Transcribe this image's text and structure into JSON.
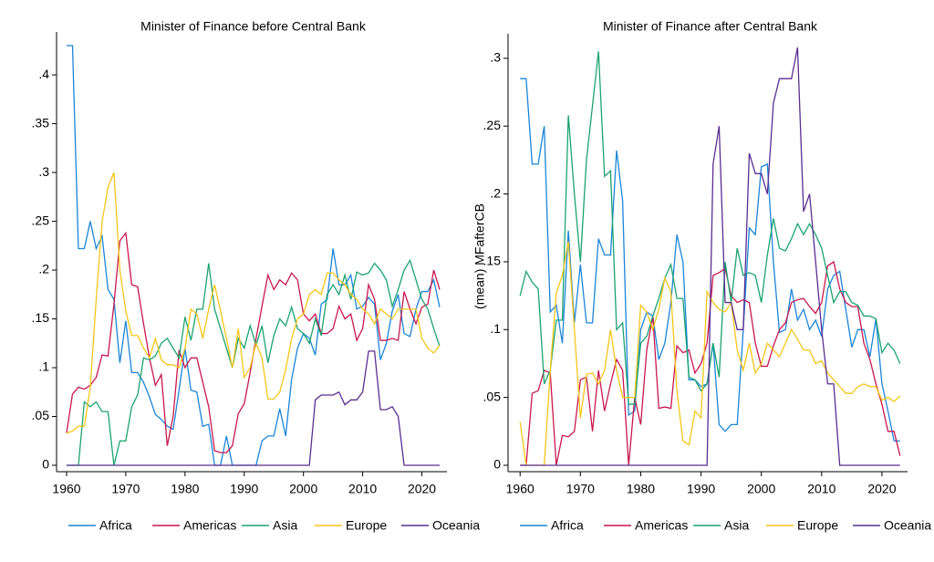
{
  "chart_data": [
    {
      "type": "line",
      "title": "Minister of Finance before Central Bank",
      "legend": "bottom",
      "xlim": [
        1958,
        2025
      ],
      "xticks": [
        1960,
        1970,
        1980,
        1990,
        2000,
        2010,
        2020
      ],
      "ylim": [
        0,
        0.43
      ],
      "yticks": [
        0,
        {
          "value": 0.05,
          "label": ".05"
        },
        {
          "value": 0.1,
          "label": ".1"
        },
        {
          "value": 0.15,
          "label": ".15"
        },
        {
          "value": 0.2,
          "label": ".2"
        },
        {
          "value": 0.25,
          "label": ".25"
        },
        {
          "value": 0.3,
          "label": ".3"
        },
        {
          "value": 0.35,
          "label": ".35"
        },
        {
          "value": 0.4,
          "label": ".4"
        }
      ],
      "x": [
        1960,
        1961,
        1962,
        1963,
        1964,
        1965,
        1966,
        1967,
        1968,
        1969,
        1970,
        1971,
        1972,
        1973,
        1974,
        1975,
        1976,
        1977,
        1978,
        1979,
        1980,
        1981,
        1982,
        1983,
        1984,
        1985,
        1986,
        1987,
        1988,
        1989,
        1990,
        1991,
        1992,
        1993,
        1994,
        1995,
        1996,
        1997,
        1998,
        1999,
        2000,
        2001,
        2002,
        2003,
        2004,
        2005,
        2006,
        2007,
        2008,
        2009,
        2010,
        2011,
        2012,
        2013,
        2014,
        2015,
        2016,
        2017,
        2018,
        2019,
        2020,
        2021,
        2022,
        2023
      ],
      "series": [
        {
          "name": "Africa",
          "color": "#1a85d8",
          "values": [
            0.43,
            0.43,
            0.222,
            0.222,
            0.25,
            0.222,
            0.235,
            0.18,
            0.17,
            0.105,
            0.148,
            0.095,
            0.095,
            0.085,
            0.07,
            0.052,
            0.047,
            0.04,
            0.037,
            0.077,
            0.12,
            0.077,
            0.075,
            0.04,
            0.042,
            0,
            0,
            0.03,
            0,
            0,
            0,
            0,
            0,
            0.025,
            0.03,
            0.03,
            0.058,
            0.03,
            0.088,
            0.12,
            0.135,
            0.13,
            0.113,
            0.165,
            0.17,
            0.222,
            0.185,
            0.185,
            0.195,
            0.16,
            0.163,
            0.172,
            0.165,
            0.108,
            0.125,
            0.158,
            0.175,
            0.135,
            0.132,
            0.16,
            0.178,
            0.178,
            0.19,
            0.162
          ]
        },
        {
          "name": "Americas",
          "color": "#c8174d",
          "values": [
            0.033,
            0.073,
            0.08,
            0.078,
            0.082,
            0.09,
            0.113,
            0.112,
            0.165,
            0.23,
            0.238,
            0.185,
            0.183,
            0.145,
            0.11,
            0.082,
            0.093,
            0.02,
            0.05,
            0.118,
            0.1,
            0.11,
            0.11,
            0.085,
            0.06,
            0.015,
            0.013,
            0.013,
            0.02,
            0.053,
            0.063,
            0.095,
            0.13,
            0.163,
            0.195,
            0.18,
            0.19,
            0.185,
            0.197,
            0.19,
            0.155,
            0.148,
            0.155,
            0.135,
            0.135,
            0.14,
            0.163,
            0.15,
            0.155,
            0.128,
            0.14,
            0.185,
            0.17,
            0.128,
            0.128,
            0.13,
            0.128,
            0.178,
            0.16,
            0.145,
            0.162,
            0.165,
            0.2,
            0.18
          ]
        },
        {
          "name": "Asia",
          "color": "#1aa36f",
          "values": [
            0,
            0,
            0,
            0.065,
            0.06,
            0.065,
            0.055,
            0.055,
            0,
            0.025,
            0.025,
            0.06,
            0.072,
            0.11,
            0.108,
            0.112,
            0.125,
            0.13,
            0.12,
            0.11,
            0.152,
            0.128,
            0.16,
            0.16,
            0.207,
            0.16,
            0.14,
            0.12,
            0.1,
            0.13,
            0.12,
            0.143,
            0.123,
            0.143,
            0.105,
            0.133,
            0.15,
            0.143,
            0.162,
            0.14,
            0.135,
            0.125,
            0.15,
            0.133,
            0.175,
            0.185,
            0.175,
            0.195,
            0.17,
            0.198,
            0.195,
            0.197,
            0.207,
            0.2,
            0.19,
            0.163,
            0.18,
            0.2,
            0.21,
            0.19,
            0.17,
            0.16,
            0.14,
            0.122
          ]
        },
        {
          "name": "Europe",
          "color": "#f5c518",
          "values": [
            0.033,
            0.035,
            0.04,
            0.04,
            0.08,
            0.17,
            0.25,
            0.285,
            0.3,
            0.2,
            0.158,
            0.133,
            0.133,
            0.12,
            0.11,
            0.13,
            0.108,
            0.103,
            0.103,
            0.1,
            0.12,
            0.16,
            0.155,
            0.13,
            0.16,
            0.185,
            0.158,
            0.13,
            0.1,
            0.14,
            0.09,
            0.1,
            0.125,
            0.11,
            0.068,
            0.068,
            0.075,
            0.098,
            0.13,
            0.15,
            0.155,
            0.175,
            0.18,
            0.175,
            0.197,
            0.197,
            0.19,
            0.185,
            0.175,
            0.17,
            0.16,
            0.155,
            0.145,
            0.16,
            0.155,
            0.15,
            0.16,
            0.16,
            0.16,
            0.16,
            0.13,
            0.12,
            0.115,
            0.123
          ]
        },
        {
          "name": "Oceania",
          "color": "#5a2d91",
          "values": [
            0,
            0,
            0,
            0,
            0,
            0,
            0,
            0,
            0,
            0,
            0,
            0,
            0,
            0,
            0,
            0,
            0,
            0,
            0,
            0,
            0,
            0,
            0,
            0,
            0,
            0,
            0,
            0,
            0,
            0,
            0,
            0,
            0,
            0,
            0,
            0,
            0,
            0,
            0,
            0,
            0,
            0,
            0.067,
            0.072,
            0.072,
            0.072,
            0.075,
            0.062,
            0.067,
            0.067,
            0.075,
            0.117,
            0.117,
            0.057,
            0.057,
            0.06,
            0.05,
            0,
            0,
            0,
            0,
            0,
            0,
            0
          ]
        }
      ]
    },
    {
      "type": "line",
      "title": "Minister of Finance after Central Bank",
      "ylabel": "(mean) MFafterCB",
      "legend": "bottom",
      "xlim": [
        1958,
        2025
      ],
      "xticks": [
        1960,
        1970,
        1980,
        1990,
        2000,
        2010,
        2020
      ],
      "ylim": [
        0,
        0.308
      ],
      "yticks": [
        0,
        {
          "value": 0.05,
          "label": ".05"
        },
        {
          "value": 0.1,
          "label": ".1"
        },
        {
          "value": 0.15,
          "label": ".15"
        },
        {
          "value": 0.2,
          "label": ".2"
        },
        {
          "value": 0.25,
          "label": ".25"
        },
        {
          "value": 0.3,
          "label": ".3"
        }
      ],
      "x": [
        1960,
        1961,
        1962,
        1963,
        1964,
        1965,
        1966,
        1967,
        1968,
        1969,
        1970,
        1971,
        1972,
        1973,
        1974,
        1975,
        1976,
        1977,
        1978,
        1979,
        1980,
        1981,
        1982,
        1983,
        1984,
        1985,
        1986,
        1987,
        1988,
        1989,
        1990,
        1991,
        1992,
        1993,
        1994,
        1995,
        1996,
        1997,
        1998,
        1999,
        2000,
        2001,
        2002,
        2003,
        2004,
        2005,
        2006,
        2007,
        2008,
        2009,
        2010,
        2011,
        2012,
        2013,
        2014,
        2015,
        2016,
        2017,
        2018,
        2019,
        2020,
        2021,
        2022,
        2023
      ],
      "series": [
        {
          "name": "Africa",
          "color": "#1a85d8",
          "values": [
            0.285,
            0.285,
            0.222,
            0.222,
            0.25,
            0.113,
            0.118,
            0.09,
            0.173,
            0.105,
            0.148,
            0.105,
            0.105,
            0.167,
            0.155,
            0.155,
            0.232,
            0.195,
            0.037,
            0.04,
            0.1,
            0.113,
            0.11,
            0.078,
            0.09,
            0.12,
            0.17,
            0.15,
            0.063,
            0.063,
            0.058,
            0.06,
            0.09,
            0.03,
            0.025,
            0.03,
            0.03,
            0.1,
            0.175,
            0.17,
            0.22,
            0.222,
            0.15,
            0.098,
            0.1,
            0.13,
            0.107,
            0.115,
            0.1,
            0.107,
            0.095,
            0.13,
            0.14,
            0.143,
            0.115,
            0.087,
            0.1,
            0.1,
            0.08,
            0.108,
            0.06,
            0.04,
            0.018,
            0.018
          ]
        },
        {
          "name": "Americas",
          "color": "#c8174d",
          "values": [
            0,
            0,
            0.053,
            0.055,
            0.07,
            0.068,
            0,
            0.022,
            0.021,
            0.025,
            0.063,
            0.065,
            0.025,
            0.07,
            0.04,
            0.06,
            0.078,
            0.07,
            0,
            0.05,
            0.03,
            0.085,
            0.11,
            0.042,
            0.043,
            0.042,
            0.088,
            0.083,
            0.085,
            0.068,
            0.075,
            0.09,
            0.14,
            0.142,
            0.145,
            0.125,
            0.12,
            0.122,
            0.12,
            0.09,
            0.073,
            0.073,
            0.088,
            0.1,
            0.105,
            0.12,
            0.122,
            0.123,
            0.117,
            0.112,
            0.12,
            0.147,
            0.15,
            0.13,
            0.12,
            0.117,
            0.117,
            0.09,
            0.078,
            0.06,
            0.045,
            0.025,
            0.025,
            0.007
          ]
        },
        {
          "name": "Asia",
          "color": "#1aa36f",
          "values": [
            0.125,
            0.143,
            0.135,
            0.13,
            0.06,
            0.07,
            0.107,
            0.107,
            0.258,
            0.2,
            0.15,
            0.225,
            0.265,
            0.305,
            0.213,
            0.217,
            0.1,
            0.105,
            0.045,
            0.045,
            0.09,
            0.095,
            0.11,
            0.123,
            0.138,
            0.148,
            0.123,
            0.123,
            0.065,
            0.063,
            0.055,
            0.06,
            0.09,
            0.065,
            0.15,
            0.12,
            0.16,
            0.14,
            0.142,
            0.14,
            0.12,
            0.155,
            0.182,
            0.16,
            0.158,
            0.167,
            0.178,
            0.17,
            0.178,
            0.17,
            0.16,
            0.14,
            0.12,
            0.128,
            0.128,
            0.12,
            0.118,
            0.11,
            0.11,
            0.108,
            0.083,
            0.09,
            0.085,
            0.075
          ]
        },
        {
          "name": "Europe",
          "color": "#f5c518",
          "values": [
            0.032,
            0,
            0,
            0,
            0,
            0.07,
            0.127,
            0.14,
            0.165,
            0.1,
            0.035,
            0.067,
            0.068,
            0.06,
            0.07,
            0.1,
            0.07,
            0.05,
            0.05,
            0.05,
            0.118,
            0.113,
            0.1,
            0.115,
            0.138,
            0.128,
            0.055,
            0.018,
            0.015,
            0.04,
            0.035,
            0.128,
            0.12,
            0.115,
            0.113,
            0.12,
            0.085,
            0.07,
            0.09,
            0.068,
            0.075,
            0.09,
            0.085,
            0.08,
            0.09,
            0.1,
            0.093,
            0.085,
            0.085,
            0.075,
            0.077,
            0.068,
            0.063,
            0.058,
            0.053,
            0.053,
            0.058,
            0.06,
            0.058,
            0.058,
            0.048,
            0.05,
            0.047,
            0.051
          ]
        },
        {
          "name": "Oceania",
          "color": "#5a2d91",
          "values": [
            0,
            0,
            0,
            0,
            0,
            0,
            0,
            0,
            0,
            0,
            0,
            0,
            0,
            0,
            0,
            0,
            0,
            0,
            0,
            0,
            0,
            0,
            0,
            0,
            0,
            0,
            0,
            0,
            0,
            0,
            0,
            0,
            0.222,
            0.25,
            0.12,
            0.12,
            0.1,
            0.1,
            0.23,
            0.215,
            0.215,
            0.2,
            0.267,
            0.285,
            0.285,
            0.285,
            0.308,
            0.187,
            0.2,
            0.15,
            0.1,
            0.06,
            0.06,
            0,
            0,
            0,
            0,
            0,
            0,
            0,
            0,
            0,
            0,
            0
          ]
        }
      ]
    }
  ]
}
